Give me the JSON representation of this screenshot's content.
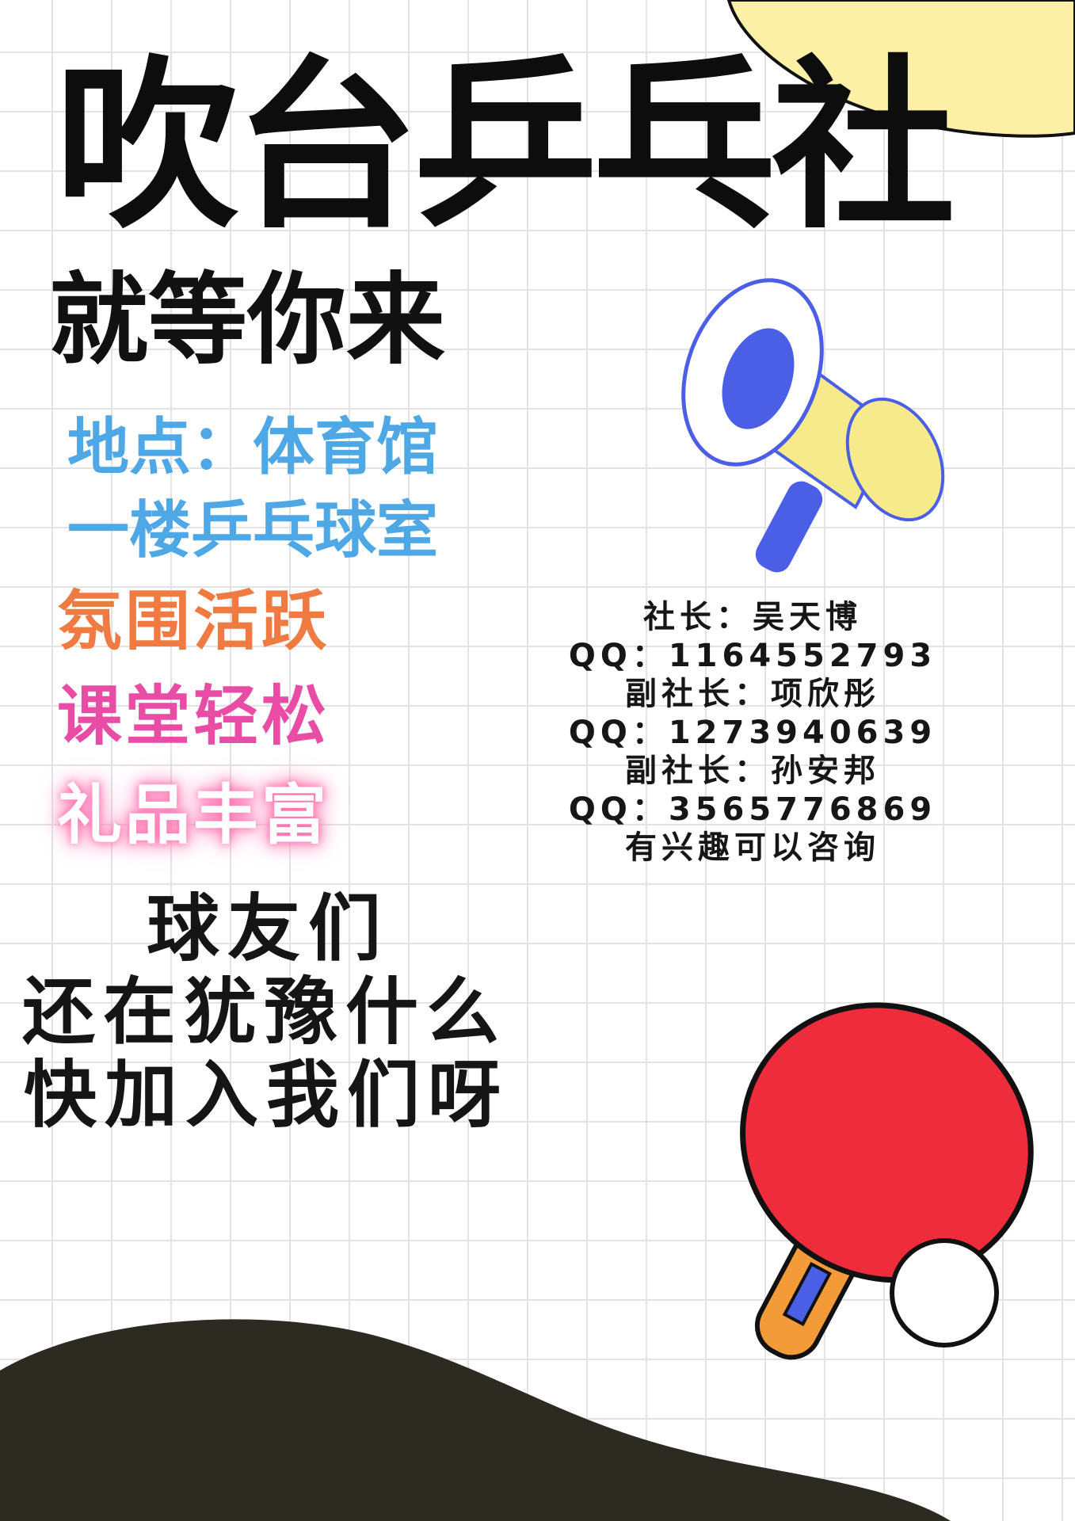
{
  "poster": {
    "title": "吹台乒乓社",
    "slogan": "就等你来",
    "location_line1": "地点：体育馆",
    "location_line2": "一楼乒乓球室",
    "features": [
      "氛围活跃",
      "课堂轻松",
      "礼品丰富"
    ],
    "call_to_action": [
      "球友们",
      "还在犹豫什么",
      "快加入我们呀"
    ]
  },
  "contacts": {
    "lines": [
      "社长：吴天博",
      "QQ：1164552793",
      "副社长：项欣彤",
      "QQ：1273940639",
      "副社长：孙安邦",
      "QQ：3565776869",
      "有兴趣可以咨询"
    ]
  },
  "icons": [
    "megaphone-icon",
    "ping-pong-paddle-icon",
    "ping-pong-ball-icon"
  ],
  "colors": {
    "title": "#0d0d0d",
    "location": "#4fa8e6",
    "feature_orange": "#ef7a42",
    "feature_pink": "#e84ca4",
    "feature_glow": "#ff6fae",
    "paddle_red": "#ef2c3c",
    "handle_orange": "#f29b38",
    "megaphone_yellow": "#f7ea8a",
    "megaphone_blue": "#4a5fe6",
    "bubble_yellow": "#fbf0a6",
    "ground_dark": "#2d2a22"
  }
}
